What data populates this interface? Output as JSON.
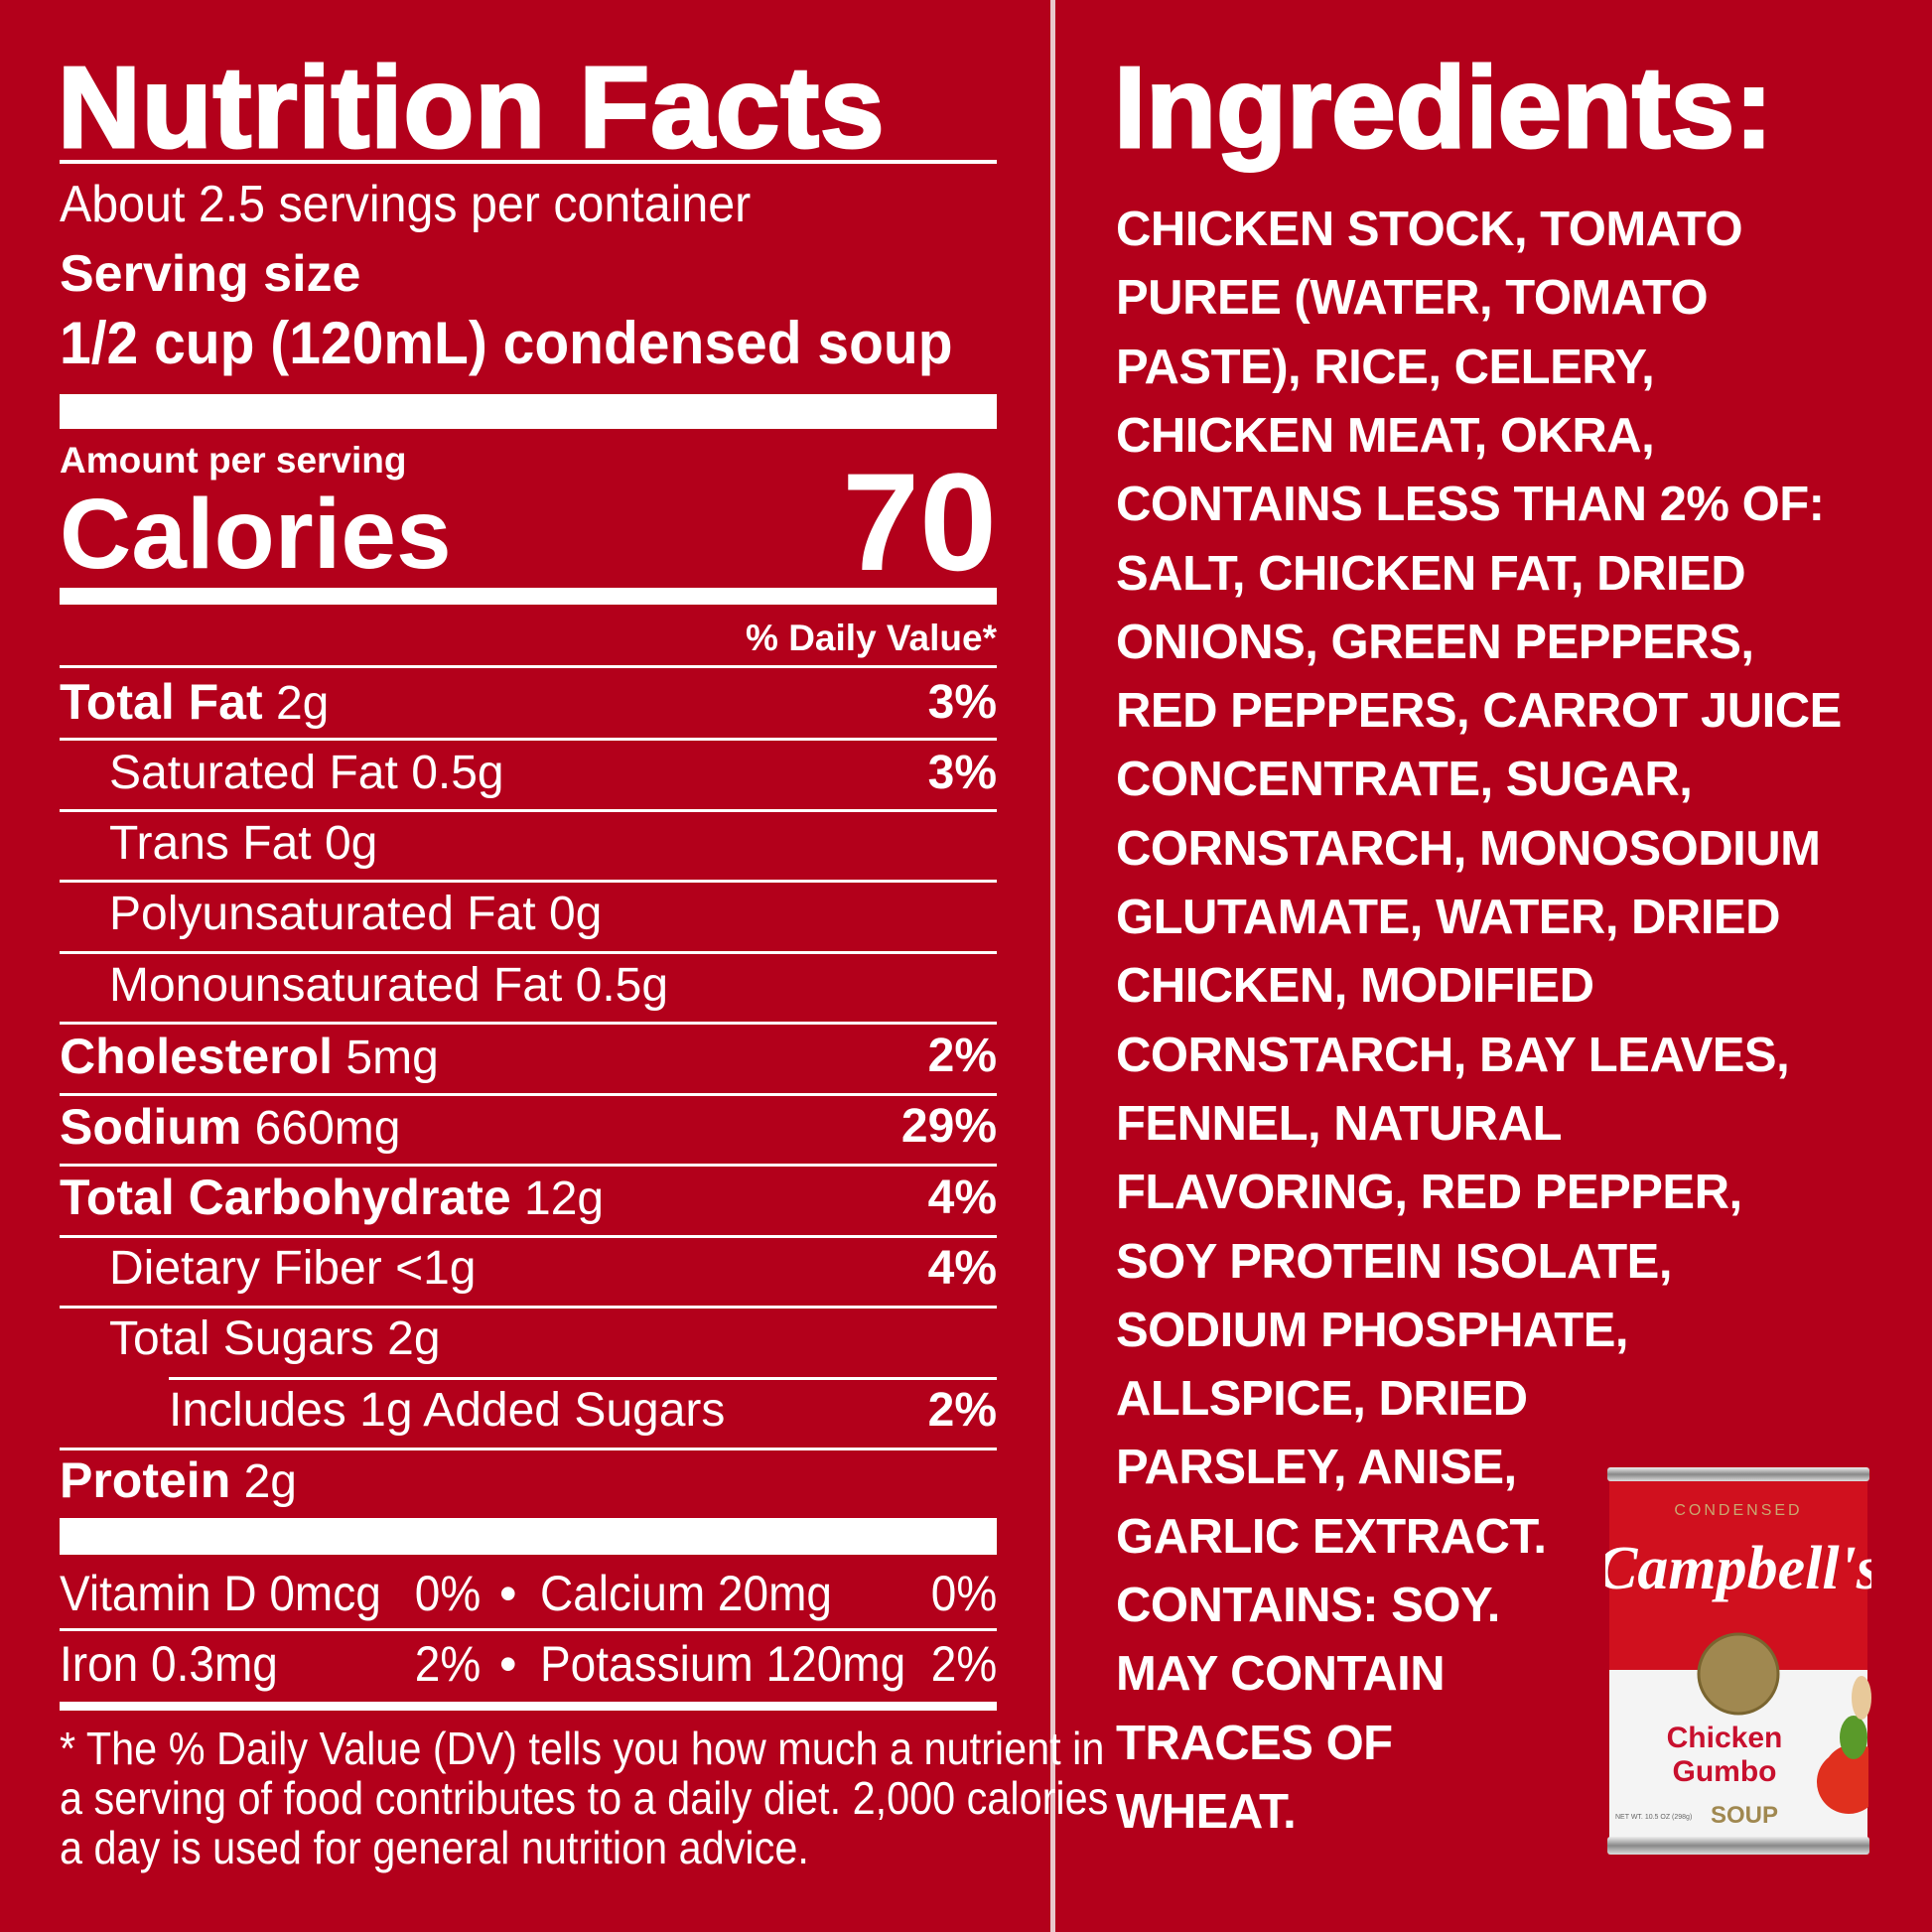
{
  "nutrition": {
    "title": "Nutrition Facts",
    "servings": "About 2.5 servings per container",
    "serving_size_label": "Serving size",
    "serving_size": "1/2 cup (120mL) condensed soup",
    "amount_per_serving": "Amount per serving",
    "calories_label": "Calories",
    "calories": "70",
    "dv_header": "% Daily Value*",
    "rows": [
      {
        "name": "Total Fat",
        "amount": "2g",
        "dv": "3%",
        "bold": true,
        "indent": 0
      },
      {
        "name": "Saturated Fat",
        "amount": "0.5g",
        "dv": "3%",
        "bold": false,
        "indent": 1
      },
      {
        "name": "Trans Fat",
        "amount": "0g",
        "dv": "",
        "bold": false,
        "indent": 1
      },
      {
        "name": "Polyunsaturated Fat",
        "amount": "0g",
        "dv": "",
        "bold": false,
        "indent": 1
      },
      {
        "name": "Monounsaturated Fat",
        "amount": "0.5g",
        "dv": "",
        "bold": false,
        "indent": 1
      },
      {
        "name": "Cholesterol",
        "amount": "5mg",
        "dv": "2%",
        "bold": true,
        "indent": 0
      },
      {
        "name": "Sodium",
        "amount": "660mg",
        "dv": "29%",
        "bold": true,
        "indent": 0
      },
      {
        "name": "Total Carbohydrate",
        "amount": "12g",
        "dv": "4%",
        "bold": true,
        "indent": 0
      },
      {
        "name": "Dietary Fiber",
        "amount": "<1g",
        "dv": "4%",
        "bold": false,
        "indent": 1
      },
      {
        "name": "Total Sugars",
        "amount": "2g",
        "dv": "",
        "bold": false,
        "indent": 1
      },
      {
        "name": "Includes 1g Added Sugars",
        "amount": "",
        "dv": "2%",
        "bold": false,
        "indent": 2
      },
      {
        "name": "Protein",
        "amount": "2g",
        "dv": "",
        "bold": true,
        "indent": 0
      }
    ],
    "vitamins": [
      {
        "left": "Vitamin D 0mcg",
        "left_dv": "0%",
        "right": "Calcium 20mg",
        "right_dv": "0%"
      },
      {
        "left": "Iron 0.3mg",
        "left_dv": "2%",
        "right": "Potassium 120mg",
        "right_dv": "2%"
      }
    ],
    "footnote": [
      "* The % Daily Value (DV) tells you how much a nutrient in",
      "a serving of food contributes to a daily diet. 2,000 calories",
      "a day is used for general nutrition advice."
    ]
  },
  "ingredients": {
    "title": "Ingredients:",
    "lines": [
      "CHICKEN STOCK, TOMATO",
      "PUREE (WATER, TOMATO",
      "PASTE), RICE, CELERY,",
      "CHICKEN MEAT, OKRA,",
      "CONTAINS LESS THAN 2% OF:",
      "SALT, CHICKEN FAT, DRIED",
      "ONIONS, GREEN PEPPERS,",
      "RED PEPPERS, CARROT JUICE",
      "CONCENTRATE, SUGAR,",
      "CORNSTARCH, MONOSODIUM",
      "GLUTAMATE, WATER, DRIED",
      "CHICKEN, MODIFIED",
      "CORNSTARCH, BAY LEAVES,",
      "FENNEL, NATURAL",
      "FLAVORING, RED PEPPER,",
      "SOY PROTEIN ISOLATE,",
      "SODIUM PHOSPHATE,",
      "ALLSPICE, DRIED",
      "PARSLEY, ANISE,",
      "GARLIC EXTRACT.",
      "CONTAINS: SOY.",
      "MAY CONTAIN",
      "TRACES OF",
      "WHEAT."
    ]
  },
  "can": {
    "top_label": "CONDENSED",
    "brand": "Campbell's",
    "variety_line1": "Chicken",
    "variety_line2": "Gumbo",
    "soup": "SOUP",
    "net_wt": "NET WT. 10.5 OZ (298g)"
  },
  "colors": {
    "background": "#b3001b",
    "text": "#ffffff",
    "can_red": "#d0101e",
    "can_gold": "#a08850"
  }
}
